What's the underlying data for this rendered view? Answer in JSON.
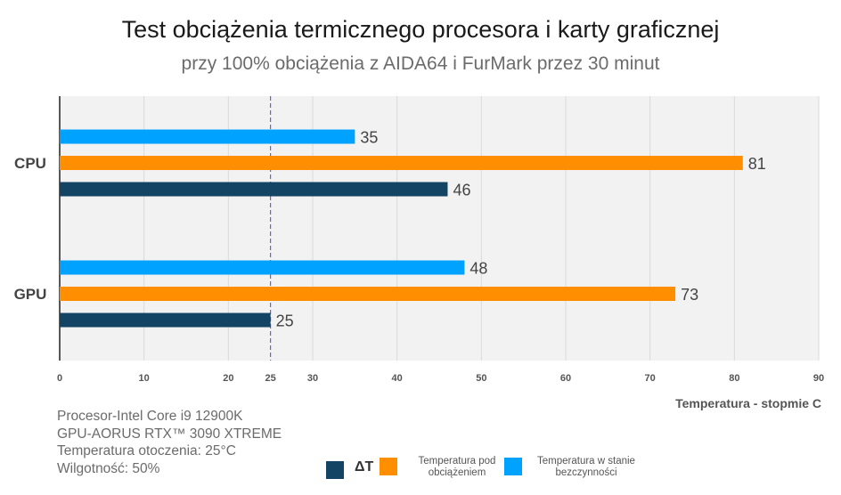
{
  "chart_data": {
    "type": "bar",
    "orientation": "horizontal",
    "title": "Test obciążenia termicznego procesora i karty graficznej",
    "subtitle": "przy 100% obciążenia z AIDA64 i FurMark przez 30 minut",
    "xlabel": "Temperatura - stopmie C",
    "xlim": [
      0,
      90
    ],
    "xticks": [
      0,
      10,
      20,
      25,
      30,
      40,
      50,
      60,
      70,
      80,
      90
    ],
    "reference_line": 25,
    "categories": [
      "CPU",
      "GPU"
    ],
    "series": [
      {
        "name": "Temperatura w stanie bezczynności",
        "values": [
          35,
          48
        ],
        "color": "#00A2FF"
      },
      {
        "name": "Temperatura pod obciążeniem",
        "values": [
          81,
          73
        ],
        "color": "#FF8F00"
      },
      {
        "name": "ΔT",
        "values": [
          46,
          25
        ],
        "color": "#144463"
      }
    ],
    "grid": true,
    "legend_position": "bottom"
  },
  "legend": [
    {
      "label": "ΔT",
      "color": "#144463"
    },
    {
      "label": "Temperatura pod obciążeniem",
      "color": "#FF8F00"
    },
    {
      "label": "Temperatura w stanie bezczynności",
      "color": "#00A2FF"
    }
  ],
  "notes": {
    "line1": "Procesor-Intel Core i9 12900K",
    "line2": "GPU-AORUS RTX™ 3090 XTREME",
    "line3": "Temperatura otoczenia: 25°C",
    "line4": "Wilgotność: 50%"
  }
}
